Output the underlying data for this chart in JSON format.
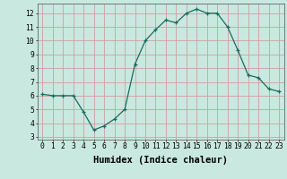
{
  "x": [
    0,
    1,
    2,
    3,
    4,
    5,
    6,
    7,
    8,
    9,
    10,
    11,
    12,
    13,
    14,
    15,
    16,
    17,
    18,
    19,
    20,
    21,
    22,
    23
  ],
  "y": [
    6.1,
    6.0,
    6.0,
    6.0,
    4.8,
    3.5,
    3.8,
    4.3,
    5.0,
    8.3,
    10.0,
    10.8,
    11.5,
    11.3,
    12.0,
    12.3,
    12.0,
    12.0,
    11.0,
    9.3,
    7.5,
    7.3,
    6.5,
    6.3
  ],
  "xlabel": "Humidex (Indice chaleur)",
  "ylim": [
    2.8,
    12.7
  ],
  "xlim": [
    -0.5,
    23.5
  ],
  "yticks": [
    3,
    4,
    5,
    6,
    7,
    8,
    9,
    10,
    11,
    12
  ],
  "xticks": [
    0,
    1,
    2,
    3,
    4,
    5,
    6,
    7,
    8,
    9,
    10,
    11,
    12,
    13,
    14,
    15,
    16,
    17,
    18,
    19,
    20,
    21,
    22,
    23
  ],
  "line_color": "#1a6b5e",
  "marker_color": "#1a6b5e",
  "bg_color": "#c8e8e0",
  "grid_color": "#d0a0a0",
  "tick_label_fontsize": 5.8,
  "xlabel_fontsize": 7.5
}
